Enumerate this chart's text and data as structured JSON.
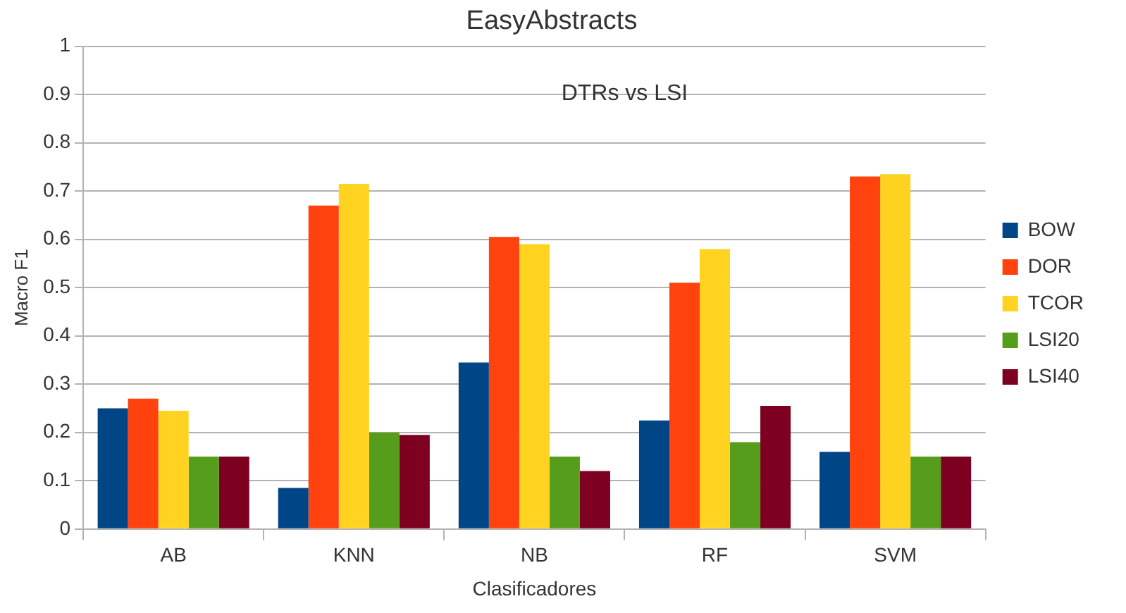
{
  "chart_data": {
    "type": "bar",
    "title": "EasyAbstracts",
    "annotations": [
      "DTRs vs LSI"
    ],
    "xlabel": "Clasificadores",
    "ylabel": "Macro F1",
    "categories": [
      "AB",
      "KNN",
      "NB",
      "RF",
      "SVM"
    ],
    "series": [
      {
        "name": "BOW",
        "color": "#004586",
        "values": [
          0.25,
          0.085,
          0.345,
          0.225,
          0.16
        ]
      },
      {
        "name": "DOR",
        "color": "#ff420e",
        "values": [
          0.27,
          0.67,
          0.605,
          0.51,
          0.73
        ]
      },
      {
        "name": "TCOR",
        "color": "#ffd320",
        "values": [
          0.245,
          0.715,
          0.59,
          0.58,
          0.735
        ]
      },
      {
        "name": "LSI20",
        "color": "#579d1c",
        "values": [
          0.15,
          0.2,
          0.15,
          0.18,
          0.15
        ]
      },
      {
        "name": "LSI40",
        "color": "#7e0021",
        "values": [
          0.15,
          0.195,
          0.12,
          0.255,
          0.15
        ]
      }
    ],
    "ylim": [
      0,
      1
    ],
    "yticks": [
      0,
      0.1,
      0.2,
      0.3,
      0.4,
      0.5,
      0.6,
      0.7,
      0.8,
      0.9,
      1
    ],
    "grid": "y",
    "legend": "right"
  }
}
